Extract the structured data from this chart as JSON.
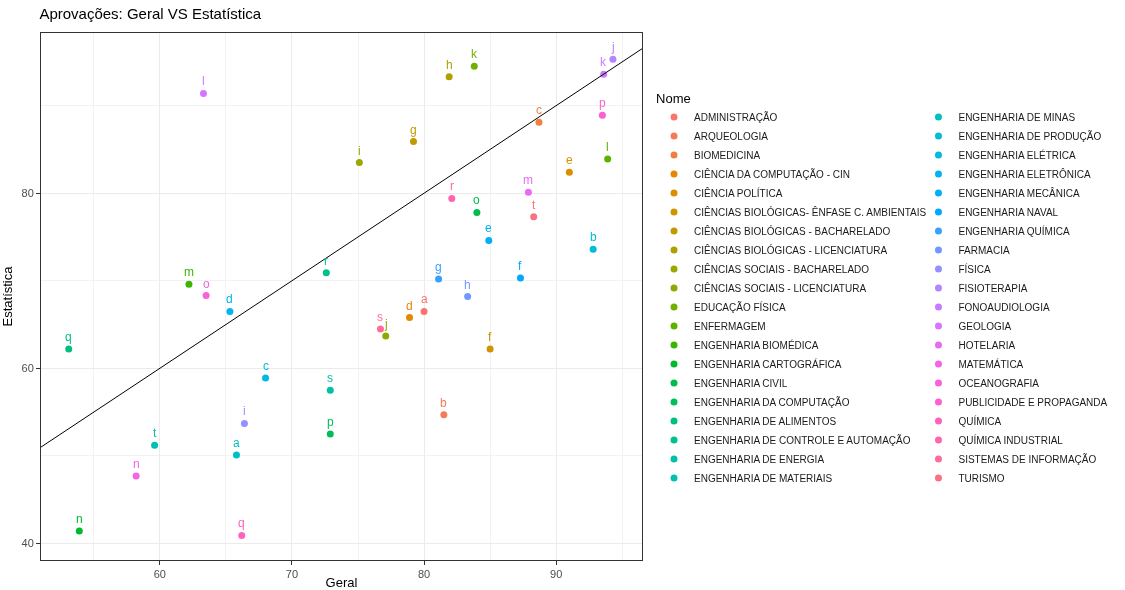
{
  "chart_data": {
    "type": "scatter",
    "title": "Aprovações: Geral VS Estatística",
    "xlabel": "Geral",
    "ylabel": "Estatística",
    "legend_title": "Nome",
    "legend": "right",
    "grid": true,
    "marker": "circle",
    "xlim": [
      51,
      96.5
    ],
    "ylim": [
      38.1,
      98.3
    ],
    "xticks": [
      60,
      70,
      80,
      90
    ],
    "yticks": [
      40,
      60,
      80
    ],
    "series": [
      {
        "name": "ADMINISTRAÇÃO",
        "color": "#f8766d",
        "x": [
          80.0
        ],
        "values": [
          66.5
        ],
        "value_labels": [
          "a"
        ]
      },
      {
        "name": "ARQUEOLOGIA",
        "color": "#f37b59",
        "x": [
          81.5
        ],
        "values": [
          54.7
        ],
        "value_labels": [
          "b"
        ]
      },
      {
        "name": "BIOMEDICINA",
        "color": "#ed8141",
        "x": [
          88.7
        ],
        "values": [
          88.1
        ],
        "value_labels": [
          "c"
        ]
      },
      {
        "name": "CIÊNCIA DA COMPUTAÇÃO - CIN",
        "color": "#e58700",
        "x": [
          78.9
        ],
        "values": [
          65.8
        ],
        "value_labels": [
          "d"
        ]
      },
      {
        "name": "CIÊNCIA POLÍTICA",
        "color": "#db8e00",
        "x": [
          91.0
        ],
        "values": [
          82.4
        ],
        "value_labels": [
          "e"
        ]
      },
      {
        "name": "CIÊNCIAS BIOLÓGICAS- ÊNFASE C. AMBIENTAIS",
        "color": "#cf9400",
        "x": [
          85.0
        ],
        "values": [
          62.2
        ],
        "value_labels": [
          "f"
        ]
      },
      {
        "name": "CIÊNCIAS BIOLÓGICAS - BACHARELADO",
        "color": "#c09b00",
        "x": [
          79.2
        ],
        "values": [
          85.9
        ],
        "value_labels": [
          "g"
        ]
      },
      {
        "name": "CIÊNCIAS BIOLÓGICAS - LICENCIATURA",
        "color": "#b09f00",
        "x": [
          81.9
        ],
        "values": [
          93.3
        ],
        "value_labels": [
          "h"
        ]
      },
      {
        "name": "CIÊNCIAS SOCIAIS - BACHARELADO",
        "color": "#9da700",
        "x": [
          75.1
        ],
        "values": [
          83.5
        ],
        "value_labels": [
          "i"
        ]
      },
      {
        "name": "CIÊNCIAS SOCIAIS - LICENCIATURA",
        "color": "#88ac00",
        "x": [
          77.1
        ],
        "values": [
          63.7
        ],
        "value_labels": [
          "j"
        ]
      },
      {
        "name": "EDUCAÇÃO FÍSICA",
        "color": "#72b000",
        "x": [
          83.8
        ],
        "values": [
          94.5
        ],
        "value_labels": [
          "k"
        ]
      },
      {
        "name": "ENFERMAGEM",
        "color": "#5bb300",
        "x": [
          93.9
        ],
        "values": [
          83.9
        ],
        "value_labels": [
          "l"
        ]
      },
      {
        "name": "ENGENHARIA BIOMÉDICA",
        "color": "#39b600",
        "x": [
          62.2
        ],
        "values": [
          69.6
        ],
        "value_labels": [
          "m"
        ]
      },
      {
        "name": "ENGENHARIA CARTOGRÁFICA",
        "color": "#00b92e",
        "x": [
          53.9
        ],
        "values": [
          41.4
        ],
        "value_labels": [
          "n"
        ]
      },
      {
        "name": "ENGENHARIA CIVIL",
        "color": "#00bb4e",
        "x": [
          84.0
        ],
        "values": [
          77.8
        ],
        "value_labels": [
          "o"
        ]
      },
      {
        "name": "ENGENHARIA DA COMPUTAÇÃO",
        "color": "#00bd5c",
        "x": [
          72.9
        ],
        "values": [
          52.5
        ],
        "value_labels": [
          "p"
        ]
      },
      {
        "name": "ENGENHARIA DE ALIMENTOS",
        "color": "#00bf7d",
        "x": [
          53.1
        ],
        "values": [
          62.2
        ],
        "value_labels": [
          "q"
        ]
      },
      {
        "name": "ENGENHARIA DE CONTROLE E AUTOMAÇÃO",
        "color": "#00c08e",
        "x": [
          72.6
        ],
        "values": [
          70.9
        ],
        "value_labels": [
          "r"
        ]
      },
      {
        "name": "ENGENHARIA DE ENERGIA",
        "color": "#00c1a3",
        "x": [
          72.9
        ],
        "values": [
          57.5
        ],
        "value_labels": [
          "s"
        ]
      },
      {
        "name": "ENGENHARIA DE MATERIAIS",
        "color": "#00c0b3",
        "x": [
          59.6
        ],
        "values": [
          51.2
        ],
        "value_labels": [
          "t"
        ]
      },
      {
        "name": "ENGENHARIA DE MINAS",
        "color": "#00bfc4",
        "x": [
          65.8
        ],
        "values": [
          50.1
        ],
        "value_labels": [
          "a"
        ]
      },
      {
        "name": "ENGENHARIA DE PRODUÇÃO",
        "color": "#00bcd8",
        "x": [
          92.8
        ],
        "values": [
          73.6
        ],
        "value_labels": [
          "b"
        ]
      },
      {
        "name": "ENGENHARIA ELÉTRICA",
        "color": "#00bae0",
        "x": [
          68.0
        ],
        "values": [
          58.9
        ],
        "value_labels": [
          "c"
        ]
      },
      {
        "name": "ENGENHARIA ELETRÔNICA",
        "color": "#00b5ee",
        "x": [
          65.3
        ],
        "values": [
          66.5
        ],
        "value_labels": [
          "d"
        ]
      },
      {
        "name": "ENGENHARIA MECÂNICA",
        "color": "#00b0f6",
        "x": [
          84.9
        ],
        "values": [
          74.6
        ],
        "value_labels": [
          "e"
        ]
      },
      {
        "name": "ENGENHARIA NAVAL",
        "color": "#00a9ff",
        "x": [
          87.3
        ],
        "values": [
          70.3
        ],
        "value_labels": [
          "f"
        ]
      },
      {
        "name": "ENGENHARIA QUÍMICA",
        "color": "#35a2ff",
        "x": [
          81.1
        ],
        "values": [
          70.2
        ],
        "value_labels": [
          "g"
        ]
      },
      {
        "name": "FARMACIA",
        "color": "#7099ff",
        "x": [
          83.3
        ],
        "values": [
          68.2
        ],
        "value_labels": [
          "h"
        ]
      },
      {
        "name": "FÍSICA",
        "color": "#9590ff",
        "x": [
          66.4
        ],
        "values": [
          53.7
        ],
        "value_labels": [
          "i"
        ]
      },
      {
        "name": "FISIOTERAPIA",
        "color": "#b385ff",
        "x": [
          94.3
        ],
        "values": [
          95.3
        ],
        "value_labels": [
          "j"
        ]
      },
      {
        "name": "FONOAUDIOLOGIA",
        "color": "#c77cff",
        "x": [
          93.6
        ],
        "values": [
          93.6
        ],
        "value_labels": [
          "k"
        ]
      },
      {
        "name": "GEOLOGIA",
        "color": "#d874fd",
        "x": [
          63.3
        ],
        "values": [
          91.4
        ],
        "value_labels": [
          "l"
        ]
      },
      {
        "name": "HOTELARIA",
        "color": "#e76bf3",
        "x": [
          87.9
        ],
        "values": [
          80.1
        ],
        "value_labels": [
          "m"
        ]
      },
      {
        "name": "MATEMÁTICA",
        "color": "#f265e7",
        "x": [
          58.2
        ],
        "values": [
          47.7
        ],
        "value_labels": [
          "n"
        ]
      },
      {
        "name": "OCEANOGRAFIA",
        "color": "#f962dd",
        "x": [
          63.5
        ],
        "values": [
          68.3
        ],
        "value_labels": [
          "o"
        ]
      },
      {
        "name": "PUBLICIDADE E PROPAGANDA",
        "color": "#fd61d1",
        "x": [
          93.5
        ],
        "values": [
          88.9
        ],
        "value_labels": [
          "p"
        ]
      },
      {
        "name": "QUÍMICA",
        "color": "#ff62bc",
        "x": [
          66.2
        ],
        "values": [
          40.9
        ],
        "value_labels": [
          "q"
        ]
      },
      {
        "name": "QUÍMICA INDUSTRIAL",
        "color": "#ff65ae",
        "x": [
          82.1
        ],
        "values": [
          79.4
        ],
        "value_labels": [
          "r"
        ]
      },
      {
        "name": "SISTEMAS DE INFORMAÇÃO",
        "color": "#fe6c9a",
        "x": [
          76.7
        ],
        "values": [
          64.5
        ],
        "value_labels": [
          "s"
        ]
      },
      {
        "name": "TURISMO",
        "color": "#fc717f",
        "x": [
          88.3
        ],
        "values": [
          77.3
        ],
        "value_labels": [
          "t"
        ]
      },
      {
        "type": "line",
        "marker": "none",
        "color": "#000000",
        "x": [
          51,
          96.5
        ],
        "values": [
          51,
          96.5
        ]
      }
    ]
  }
}
